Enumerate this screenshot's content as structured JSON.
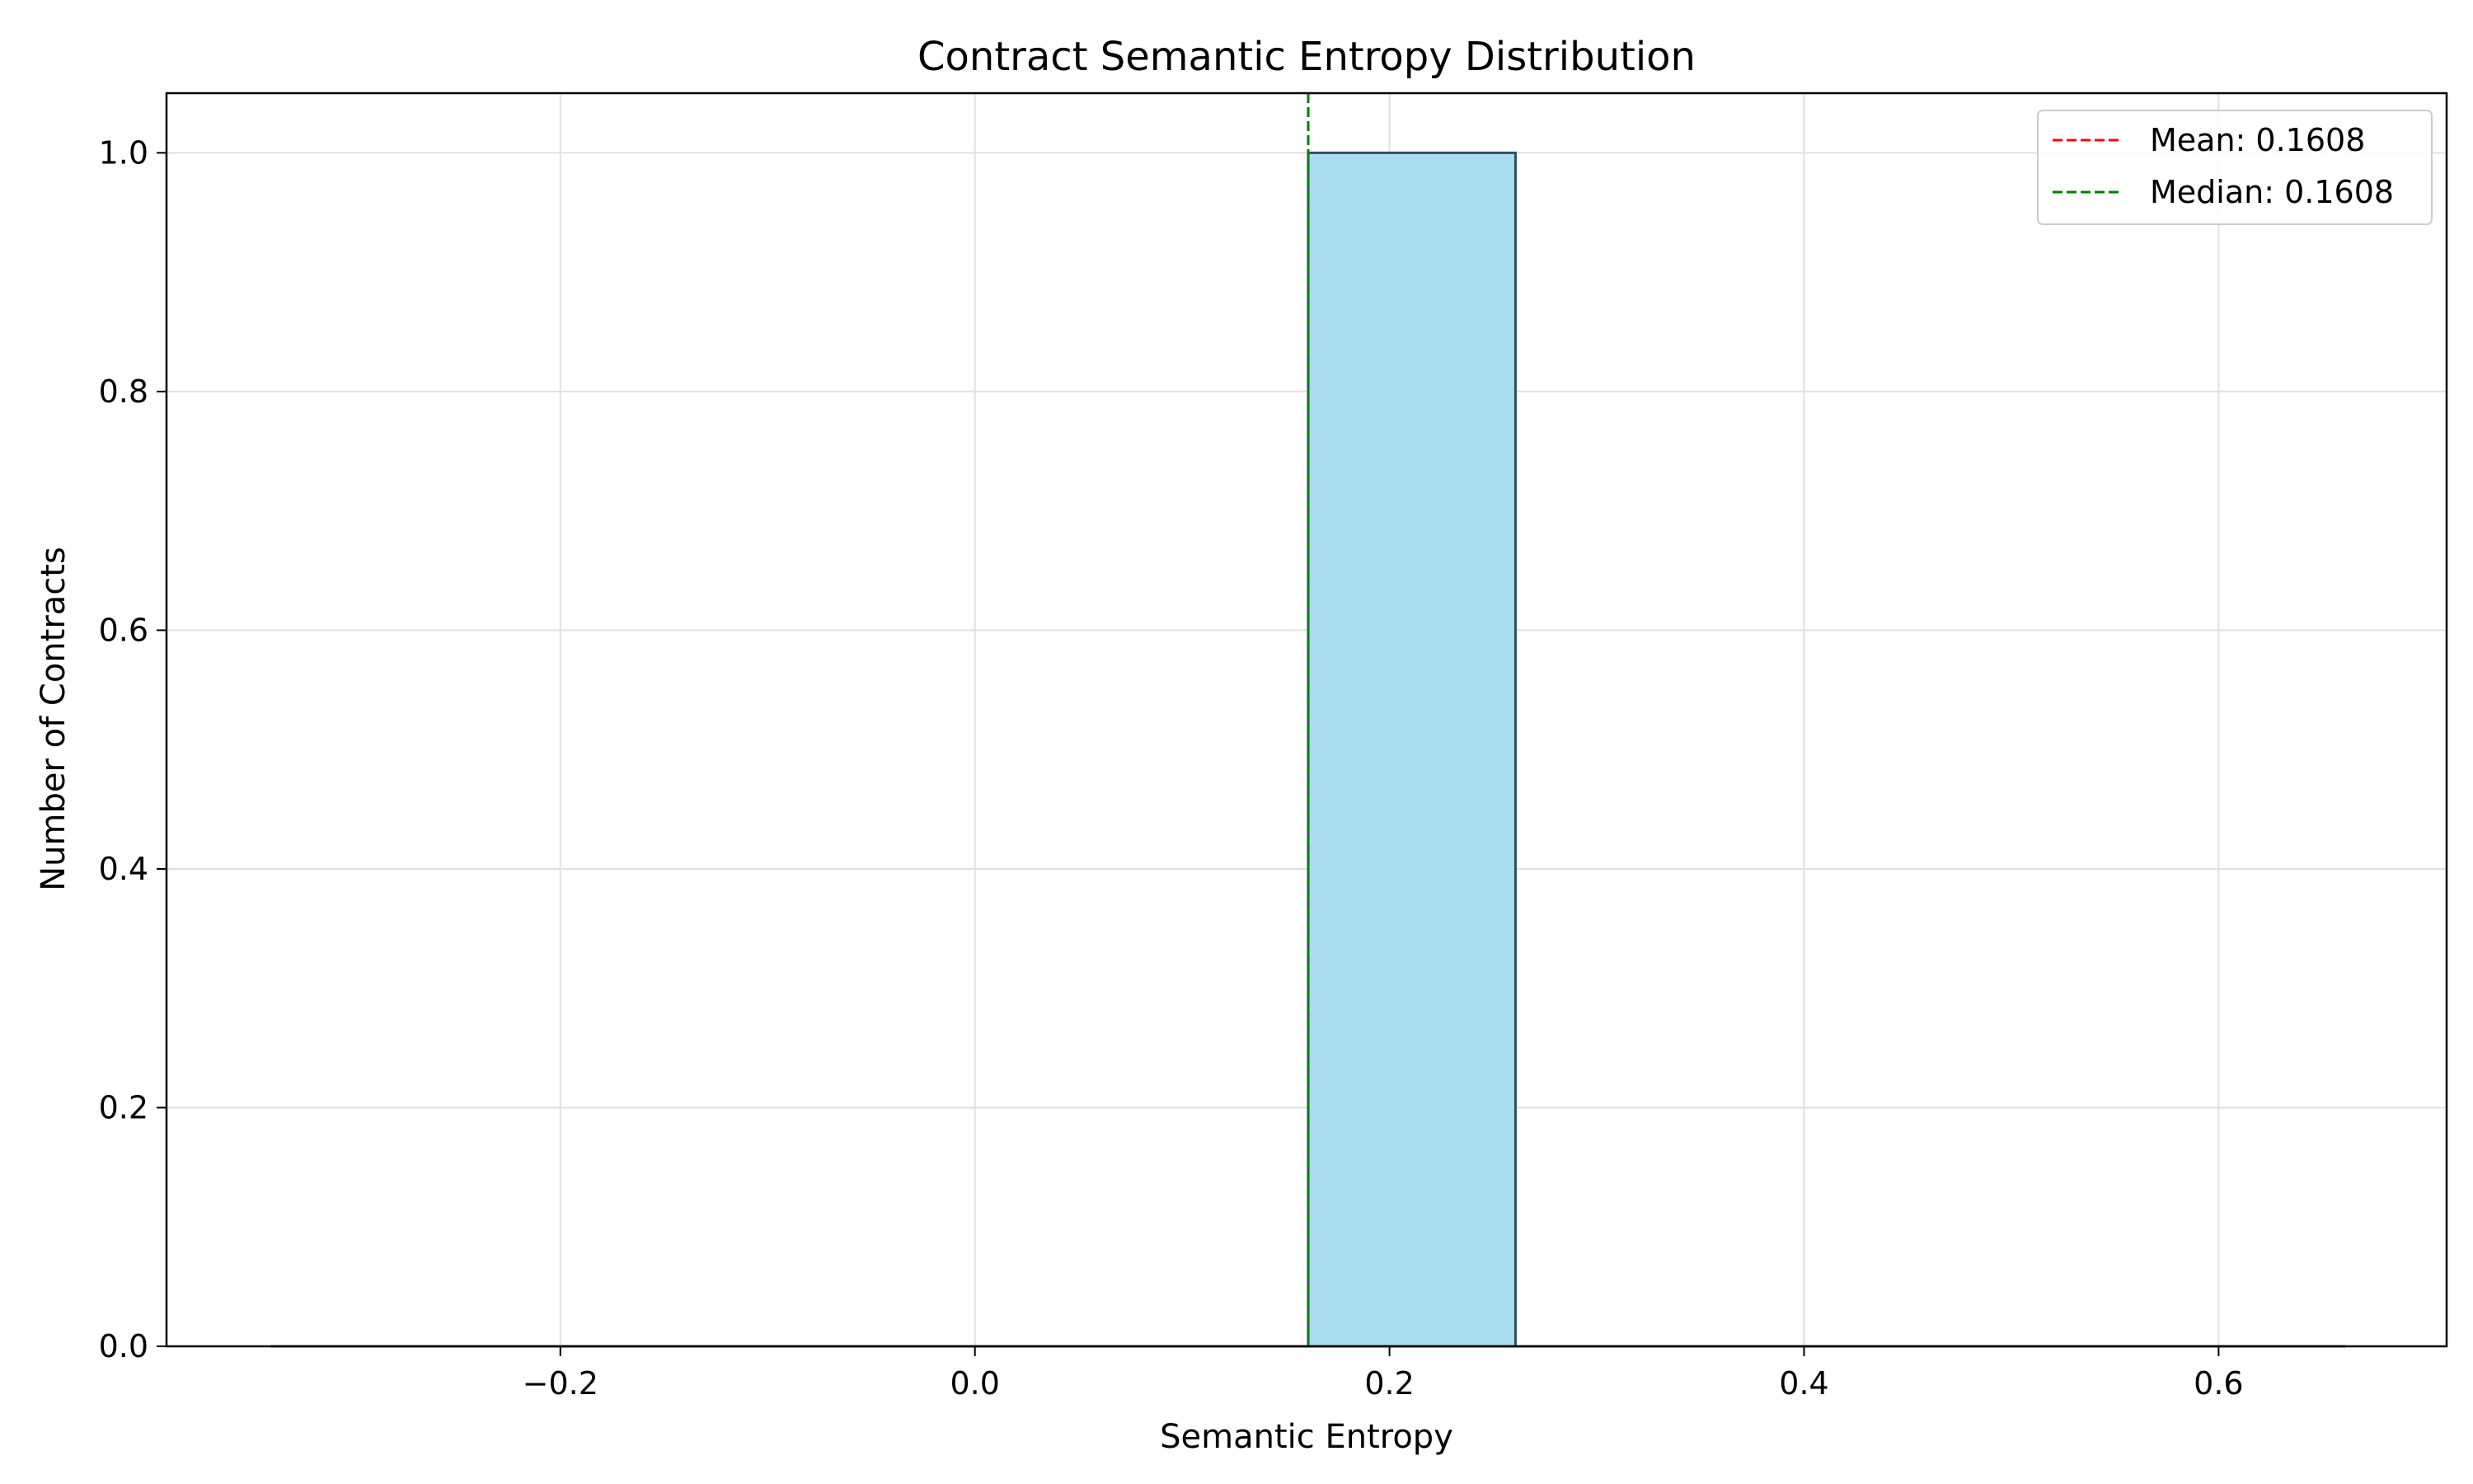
{
  "chart_data": {
    "type": "bar",
    "title": "Contract Semantic Entropy Distribution",
    "xlabel": "Semantic Entropy",
    "ylabel": "Number of Contracts",
    "xlim": [
      -0.39,
      0.71
    ],
    "ylim": [
      0.0,
      1.05
    ],
    "grid": true,
    "bins": [
      {
        "x0": -0.3392,
        "x1": -0.2392,
        "count": 0
      },
      {
        "x0": -0.2392,
        "x1": -0.1392,
        "count": 0
      },
      {
        "x0": -0.1392,
        "x1": -0.0392,
        "count": 0
      },
      {
        "x0": -0.0392,
        "x1": 0.0608,
        "count": 0
      },
      {
        "x0": 0.0608,
        "x1": 0.1608,
        "count": 0
      },
      {
        "x0": 0.1608,
        "x1": 0.2608,
        "count": 1
      },
      {
        "x0": 0.2608,
        "x1": 0.3608,
        "count": 0
      },
      {
        "x0": 0.3608,
        "x1": 0.4608,
        "count": 0
      },
      {
        "x0": 0.4608,
        "x1": 0.5608,
        "count": 0
      },
      {
        "x0": 0.5608,
        "x1": 0.6608,
        "count": 0
      }
    ],
    "x_ticks": [
      {
        "value": -0.2,
        "label": "−0.2"
      },
      {
        "value": 0.0,
        "label": "0.0"
      },
      {
        "value": 0.2,
        "label": "0.2"
      },
      {
        "value": 0.4,
        "label": "0.4"
      },
      {
        "value": 0.6,
        "label": "0.6"
      }
    ],
    "y_ticks": [
      {
        "value": 0.0,
        "label": "0.0"
      },
      {
        "value": 0.2,
        "label": "0.2"
      },
      {
        "value": 0.4,
        "label": "0.4"
      },
      {
        "value": 0.6,
        "label": "0.6"
      },
      {
        "value": 0.8,
        "label": "0.8"
      },
      {
        "value": 1.0,
        "label": "1.0"
      }
    ],
    "reference_lines": [
      {
        "name": "Mean: 0.1608",
        "value": 0.1608,
        "color": "#ff0000",
        "style": "dashed"
      },
      {
        "name": "Median: 0.1608",
        "value": 0.1608,
        "color": "#008000",
        "style": "dashed"
      }
    ],
    "legend_position": "top-right",
    "colors": {
      "bar_fill": "#a8dcee",
      "bar_edge": "#2f4f5f",
      "grid": "#e0e0e0",
      "axis": "#000000"
    }
  }
}
